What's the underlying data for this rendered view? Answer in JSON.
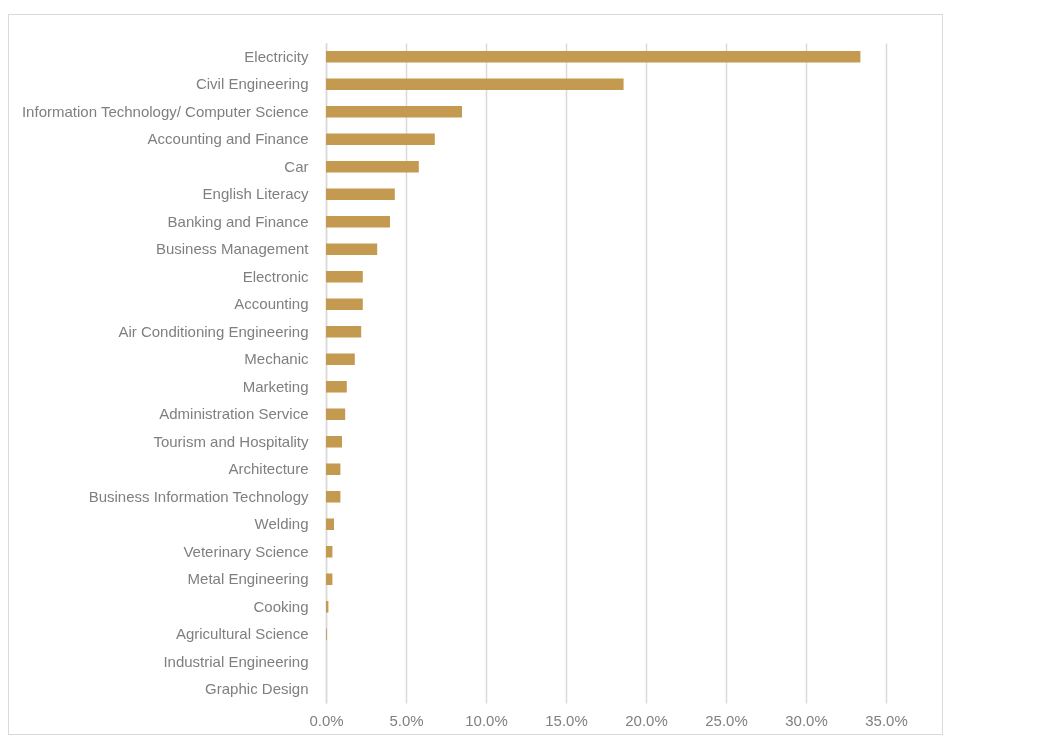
{
  "chart_data": {
    "type": "bar",
    "orientation": "horizontal",
    "categories": [
      "Electricity",
      "Civil Engineering",
      "Information Technology/ Computer Science",
      "Accounting and Finance",
      "Car",
      "English Literacy",
      "Banking and Finance",
      "Business Management",
      "Electronic",
      "Accounting",
      "Air Conditioning Engineering",
      "Mechanic",
      "Marketing",
      "Administration Service",
      "Tourism and Hospitality",
      "Architecture",
      "Business Information Technology",
      "Welding",
      "Veterinary Science",
      "Metal Engineering",
      "Cooking",
      "Agricultural Science",
      "Industrial Engineering",
      "Graphic Design"
    ],
    "values": [
      33.4,
      18.6,
      8.5,
      6.8,
      5.8,
      4.3,
      4.0,
      3.2,
      2.3,
      2.3,
      2.2,
      1.8,
      1.3,
      1.2,
      1.0,
      0.9,
      0.9,
      0.5,
      0.4,
      0.4,
      0.15,
      0.05,
      0,
      0
    ],
    "color": "#c49a50",
    "xlim": [
      0,
      35
    ],
    "xticks": [
      {
        "value": 0,
        "label": "0.0%"
      },
      {
        "value": 5,
        "label": "5.0%"
      },
      {
        "value": 10,
        "label": "10.0%"
      },
      {
        "value": 15,
        "label": "15.0%"
      },
      {
        "value": 20,
        "label": "20.0%"
      },
      {
        "value": 25,
        "label": "25.0%"
      },
      {
        "value": 30,
        "label": "30.0%"
      },
      {
        "value": 35,
        "label": "35.0%"
      }
    ],
    "grid": "x"
  }
}
